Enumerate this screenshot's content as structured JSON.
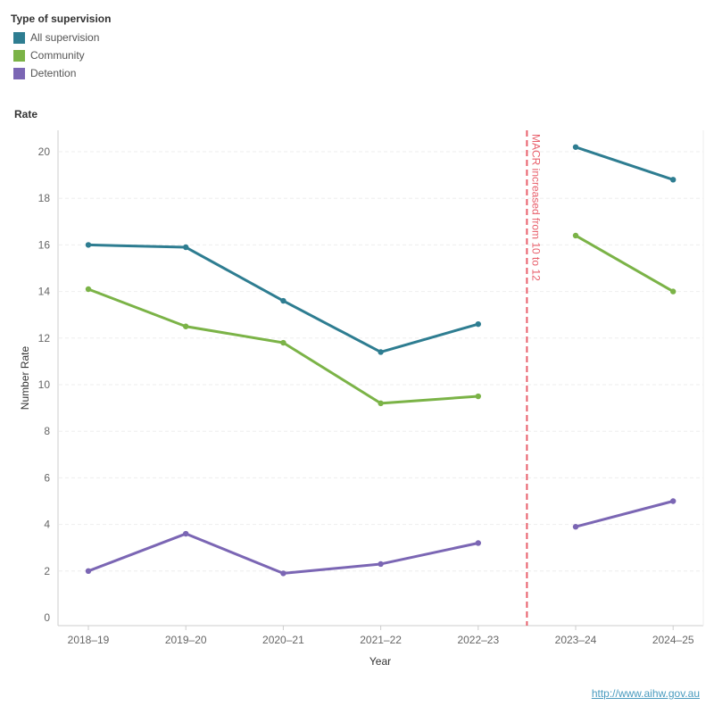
{
  "legend": {
    "title": "Type of supervision"
  },
  "panel_title": "Rate",
  "footer": {
    "link": "http://www.aihw.gov.au"
  },
  "annotation": {
    "text": "MACR increased from 10 to 12",
    "color": "#e8606c"
  },
  "chart_data": {
    "type": "line",
    "title": "",
    "xlabel": "Year",
    "ylabel": "Number Rate",
    "categories": [
      "2018–19",
      "2019–20",
      "2020–21",
      "2021–22",
      "2022–23",
      "2023–24",
      "2024–25"
    ],
    "ylim": [
      0,
      21
    ],
    "yticks": [
      0,
      2,
      4,
      6,
      8,
      10,
      12,
      14,
      16,
      18,
      20
    ],
    "grid": true,
    "legend_position": "top-left",
    "annotation_between": [
      "2022–23",
      "2023–24"
    ],
    "break_after": "2022–23",
    "series": [
      {
        "name": "All supervision",
        "color": "#2e7d91",
        "values": [
          16.0,
          15.9,
          13.6,
          11.4,
          12.6,
          20.2,
          18.8
        ]
      },
      {
        "name": "Community",
        "color": "#7bb347",
        "values": [
          14.1,
          12.5,
          11.8,
          9.2,
          9.5,
          16.4,
          14.0
        ]
      },
      {
        "name": "Detention",
        "color": "#7b66b4",
        "values": [
          2.0,
          3.6,
          1.9,
          2.3,
          3.2,
          3.9,
          5.0
        ]
      }
    ]
  }
}
